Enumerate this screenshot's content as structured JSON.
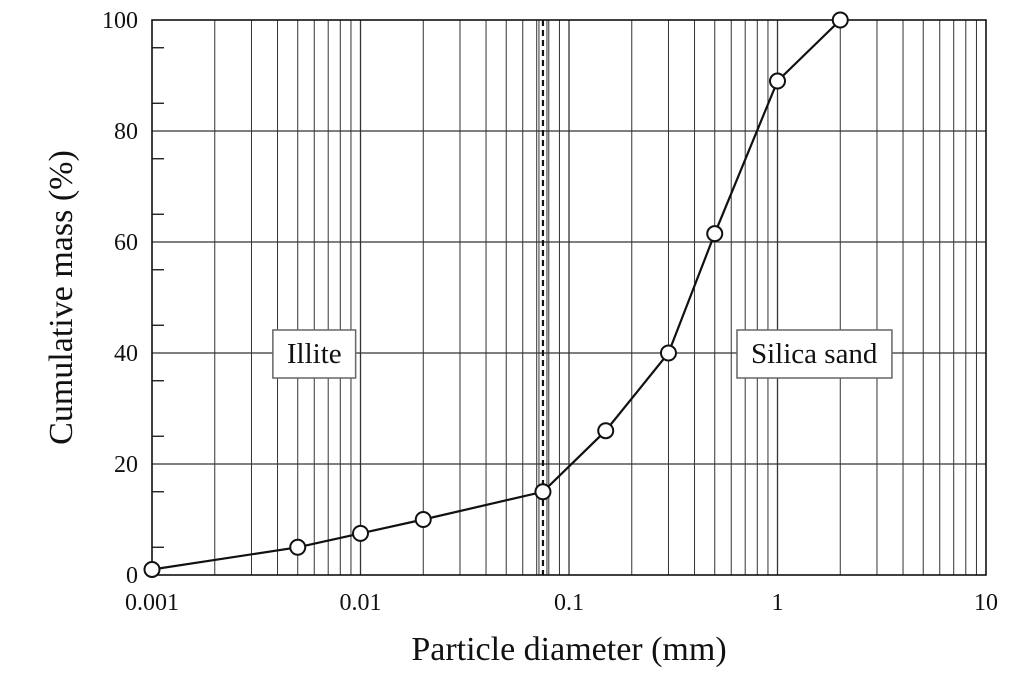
{
  "chart_data": {
    "type": "scatter",
    "title": "",
    "xlabel": "Particle diameter (mm)",
    "ylabel": "Cumulative mass (%)",
    "x_scale": "log",
    "xlim": [
      0.001,
      10
    ],
    "ylim": [
      0,
      100
    ],
    "grid": true,
    "x_ticks": [
      {
        "value": 0.001,
        "label": "0.001"
      },
      {
        "value": 0.01,
        "label": "0.01"
      },
      {
        "value": 0.1,
        "label": "0.1"
      },
      {
        "value": 1,
        "label": "1"
      },
      {
        "value": 10,
        "label": "10"
      }
    ],
    "y_ticks": [
      {
        "value": 0,
        "label": "0"
      },
      {
        "value": 20,
        "label": "20"
      },
      {
        "value": 40,
        "label": "40"
      },
      {
        "value": 60,
        "label": "60"
      },
      {
        "value": 80,
        "label": "80"
      },
      {
        "value": 100,
        "label": "100"
      }
    ],
    "series": [
      {
        "x": [
          0.001,
          0.005,
          0.01,
          0.02,
          0.075,
          0.15,
          0.3,
          0.5,
          1,
          2
        ],
        "y": [
          1,
          5,
          7.5,
          10,
          15,
          26,
          40,
          61.5,
          89,
          100
        ],
        "marker": "open-circle",
        "line": "solid",
        "color": "#111111"
      }
    ],
    "reference_lines": [
      {
        "axis": "x",
        "value": 0.075,
        "style": "dashed"
      }
    ],
    "annotations": [
      {
        "text": "Illite",
        "x": 0.006,
        "y": 40
      },
      {
        "text": "Silica sand",
        "x": 1.5,
        "y": 40
      }
    ]
  }
}
